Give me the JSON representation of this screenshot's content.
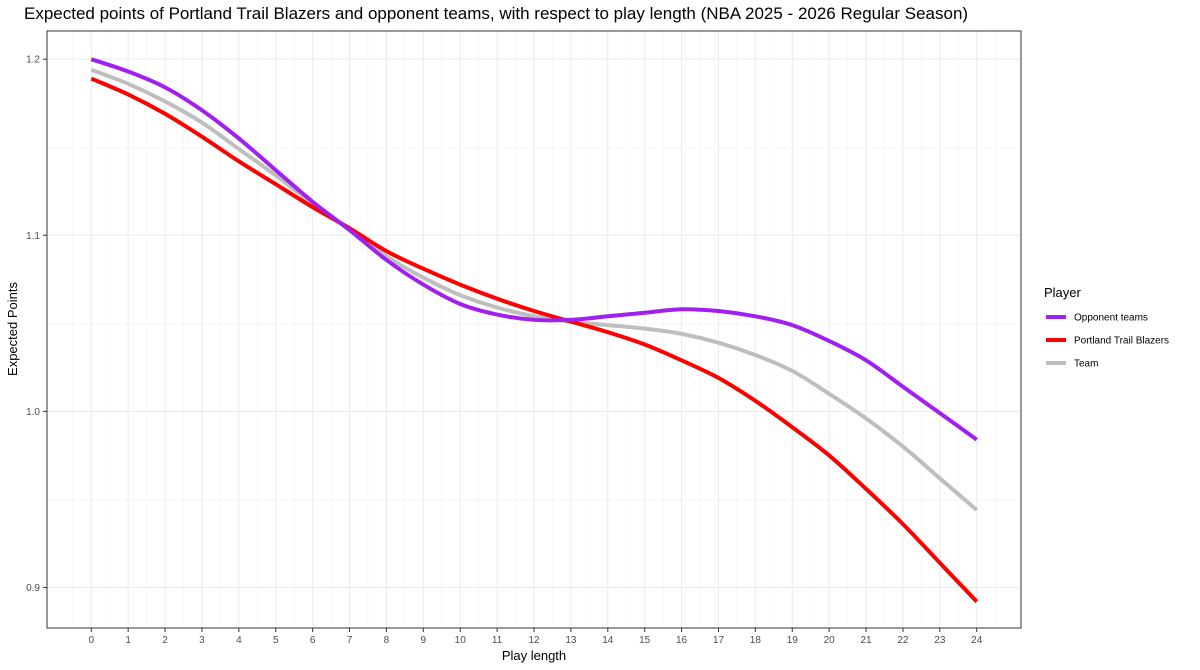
{
  "chart_data": {
    "type": "line",
    "title": "Expected points of Portland Trail Blazers and opponent teams, with respect to play length (NBA 2025 - 2026 Regular Season)",
    "xlabel": "Play length",
    "ylabel": "Expected Points",
    "xlim": [
      -1.2,
      25.2
    ],
    "ylim": [
      0.877,
      1.216
    ],
    "x_ticks": [
      0,
      1,
      2,
      3,
      4,
      5,
      6,
      7,
      8,
      9,
      10,
      11,
      12,
      13,
      14,
      15,
      16,
      17,
      18,
      19,
      20,
      21,
      22,
      23,
      24
    ],
    "y_ticks": [
      0.9,
      1.0,
      1.1,
      1.2
    ],
    "y_tick_labels": [
      "0.9",
      "1.0",
      "1.1",
      "1.2"
    ],
    "grid": true,
    "legend": {
      "title": "Player",
      "position": "right"
    },
    "x": [
      0,
      1,
      2,
      3,
      4,
      5,
      6,
      7,
      8,
      9,
      10,
      11,
      12,
      13,
      14,
      15,
      16,
      17,
      18,
      19,
      20,
      21,
      22,
      23,
      24
    ],
    "series": [
      {
        "name": "Opponent teams",
        "color": "#a020f0",
        "values": [
          1.2,
          1.193,
          1.184,
          1.171,
          1.155,
          1.137,
          1.119,
          1.103,
          1.086,
          1.072,
          1.061,
          1.055,
          1.052,
          1.052,
          1.054,
          1.056,
          1.058,
          1.057,
          1.054,
          1.049,
          1.04,
          1.029,
          1.014,
          0.999,
          0.984
        ]
      },
      {
        "name": "Portland Trail Blazers",
        "color": "#ff0000",
        "values": [
          1.189,
          1.18,
          1.169,
          1.156,
          1.142,
          1.129,
          1.116,
          1.104,
          1.091,
          1.081,
          1.072,
          1.064,
          1.057,
          1.051,
          1.045,
          1.038,
          1.029,
          1.019,
          1.006,
          0.991,
          0.975,
          0.956,
          0.936,
          0.914,
          0.892
        ]
      },
      {
        "name": "Team",
        "color": "#bebebe",
        "values": [
          1.194,
          1.186,
          1.176,
          1.164,
          1.149,
          1.134,
          1.118,
          1.103,
          1.088,
          1.076,
          1.066,
          1.059,
          1.054,
          1.051,
          1.049,
          1.047,
          1.044,
          1.039,
          1.032,
          1.023,
          1.01,
          0.996,
          0.98,
          0.962,
          0.944
        ]
      }
    ]
  }
}
